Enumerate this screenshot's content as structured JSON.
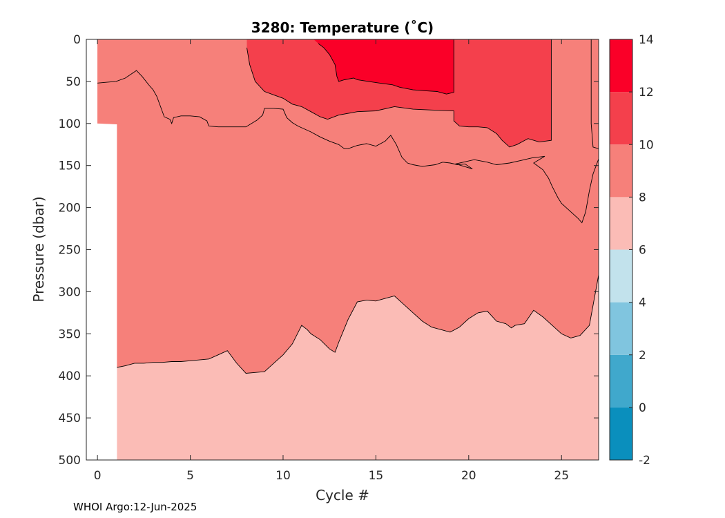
{
  "chart_data": {
    "type": "heatmap",
    "title": "3280:  Temperature (˚C)",
    "xlabel": "Cycle #",
    "ylabel": "Pressure (dbar)",
    "xlim": [
      -0.6,
      27
    ],
    "ylim": [
      0,
      500
    ],
    "y_reversed": true,
    "x_ticks": [
      0,
      5,
      10,
      15,
      20,
      25
    ],
    "y_ticks": [
      0,
      50,
      100,
      150,
      200,
      250,
      300,
      350,
      400,
      450,
      500
    ],
    "levels": [
      -2,
      0,
      2,
      4,
      6,
      8,
      10,
      12,
      14
    ],
    "level_colors": [
      "#0a8fbd",
      "#40a8cc",
      "#80c5df",
      "#c2e2ec",
      "#fbbcb6",
      "#f6807a",
      "#f4404c",
      "#fa0028"
    ],
    "regions": [
      {
        "level": "8-10",
        "color": "#f6807a",
        "lower_boundary": {
          "x": [
            1.05,
            1.5,
            2,
            2.5,
            3,
            3.5,
            4,
            4.5,
            5,
            5.5,
            6,
            6.5,
            7,
            7.5,
            8,
            8.5,
            9,
            9.5,
            10,
            10.5,
            11,
            11.3,
            11.5,
            12,
            12.5,
            12.8,
            13,
            13.5,
            14,
            14.5,
            15,
            15.5,
            16,
            16.5,
            17,
            17.5,
            18,
            18.5,
            19,
            19.5,
            20,
            20.5,
            21,
            21.5,
            22,
            22.3,
            22.5,
            23,
            23.5,
            24,
            24.5,
            25,
            25.5,
            26,
            26.5,
            27
          ],
          "y": [
            390,
            388,
            385,
            385,
            384,
            384,
            383,
            383,
            382,
            381,
            380,
            375,
            370,
            385,
            397,
            396,
            395,
            385,
            375,
            362,
            340,
            345,
            350,
            357,
            368,
            372,
            360,
            333,
            312,
            310,
            311,
            308,
            305,
            315,
            325,
            335,
            342,
            345,
            348,
            342,
            332,
            325,
            323,
            335,
            338,
            343,
            340,
            338,
            322,
            330,
            340,
            350,
            355,
            352,
            340,
            280
          ]
        }
      },
      {
        "level": "10-12",
        "color": "#f4404c",
        "region": "upper warm core, cycles 8 to 24.5, 0 to ~125 dbar"
      },
      {
        "level": "12-14",
        "color": "#fa0028",
        "region": "cycles 11.7 to 19.2, 0 to ~65 dbar"
      }
    ],
    "colorbar": {
      "ticks": [
        -2,
        0,
        2,
        4,
        6,
        8,
        10,
        12,
        14
      ]
    }
  },
  "footer": "WHOI Argo:12-Jun-2025"
}
